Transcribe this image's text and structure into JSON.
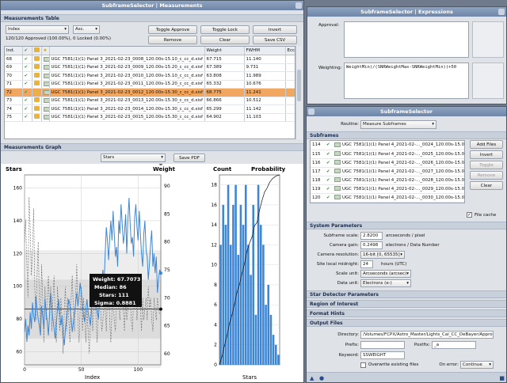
{
  "mt": {
    "title": "SubframeSelector | Measurements",
    "section": "Measurements Table",
    "sort_field": "Index",
    "sort_order": "Asc.",
    "status": "120/120 Approved (100.00%), 0 Locked (0.00%)",
    "buttons": {
      "toggle_approve": "Toggle Approve",
      "toggle_lock": "Toggle Lock",
      "invert": "Invert",
      "remove": "Remove",
      "clear": "Clear",
      "save_csv": "Save CSV"
    },
    "columns": {
      "index": "Ind.",
      "name": "",
      "weight": "Weight",
      "fwhm": "FWHM",
      "ecc": "Ecc"
    },
    "rows": [
      {
        "index": "68",
        "name": "UGC 7581(1)(1) Panel 3_2021-02-23_0008_120.00s-15.10_c_cc_d.xisf",
        "weight": "67.715",
        "fwhm": "11.140",
        "selected": false
      },
      {
        "index": "69",
        "name": "UGC 7581(1)(1) Panel 3_2021-02-23_0009_120.00s-15.20_c_cc_d.xisf",
        "weight": "67.389",
        "fwhm": "9.731",
        "selected": false
      },
      {
        "index": "70",
        "name": "UGC 7581(1)(1) Panel 3_2021-02-23_0010_120.00s-15.10_c_cc_d.xisf",
        "weight": "63.808",
        "fwhm": "11.989",
        "selected": false
      },
      {
        "index": "71",
        "name": "UGC 7581(1)(1) Panel 3_2021-02-23_0011_120.00s-15.20_c_cc_d.xisf",
        "weight": "65.332",
        "fwhm": "10.676",
        "selected": false
      },
      {
        "index": "72",
        "name": "UGC 7581(1)(1) Panel 3_2021-02-23_0012_120.00s-15.30_c_cc_d.xisf",
        "weight": "68.775",
        "fwhm": "11.241",
        "selected": true
      },
      {
        "index": "73",
        "name": "UGC 7581(1)(1) Panel 3_2021-02-23_0013_120.00s-15.30_c_cc_d.xisf",
        "weight": "66.866",
        "fwhm": "10.512",
        "selected": false
      },
      {
        "index": "74",
        "name": "UGC 7581(1)(1) Panel 3_2021-02-23_0014_120.00s-15.30_c_cc_d.xisf",
        "weight": "65.299",
        "fwhm": "11.142",
        "selected": false
      },
      {
        "index": "75",
        "name": "UGC 7581(1)(1) Panel 3_2021-02-23_0015_120.00s-15.30_c_cc_d.xisf",
        "weight": "64.902",
        "fwhm": "11.103",
        "selected": false
      }
    ]
  },
  "graph": {
    "section": "Measurements Graph",
    "property": "Stars",
    "save_pdf": "Save PDF",
    "left_label": "Stars",
    "right_label": "Weight",
    "x_label": "Index",
    "count_label": "Count",
    "prob_label": "Probability",
    "hist_x_label": "Stars",
    "tooltip": {
      "weight": "Weight: 67.7073",
      "median": "Median: 86",
      "stars": "Stars: 111",
      "sigma": "Sigma: 0.8881"
    }
  },
  "chart_data": [
    {
      "type": "line",
      "title": "",
      "xlabel": "Index",
      "ylabel": "Stars",
      "y2label": "Weight",
      "x_ticks": [
        "0",
        "50",
        "100"
      ],
      "y_ticks": [
        "60",
        "80",
        "100",
        "120",
        "140",
        "160"
      ],
      "y2_ticks": [
        "60",
        "65",
        "70",
        "75",
        "80",
        "85",
        "90"
      ],
      "xlim": [
        0,
        120
      ],
      "ylim": [
        52,
        168
      ],
      "y2lim": [
        58,
        92
      ],
      "stars": [
        72,
        80,
        66,
        76,
        70,
        84,
        74,
        90,
        82,
        78,
        94,
        86,
        80,
        76,
        70,
        88,
        82,
        74,
        92,
        84,
        78,
        70,
        82,
        96,
        88,
        80,
        74,
        68,
        78,
        86,
        92,
        84,
        76,
        82,
        70,
        64,
        74,
        80,
        86,
        92,
        88,
        80,
        72,
        78,
        84,
        90,
        96,
        88,
        94,
        102,
        96,
        88,
        82,
        78,
        86,
        92,
        84,
        80,
        76,
        86,
        94,
        100,
        92,
        88,
        84,
        80,
        90,
        96,
        104,
        110,
        100,
        120,
        136,
        128,
        116,
        130,
        140,
        128,
        146,
        132,
        118,
        124,
        112,
        140,
        132,
        150,
        138,
        126,
        132,
        144,
        120,
        140,
        154,
        138,
        126,
        130,
        118,
        142,
        150,
        136,
        128,
        146,
        132,
        120,
        112,
        132,
        140,
        122,
        118,
        104,
        114,
        126,
        134,
        112,
        120,
        108,
        118,
        96,
        104,
        110,
        108
      ],
      "weight": [
        80,
        84,
        76,
        70,
        88,
        82,
        74,
        78,
        86,
        72,
        66,
        74,
        80,
        70,
        64,
        76,
        70,
        62,
        72,
        66,
        70,
        74,
        68,
        72,
        64,
        70,
        74,
        66,
        62,
        72,
        68,
        64,
        70,
        66,
        60,
        68,
        72,
        64,
        70,
        66,
        62,
        70,
        74,
        68,
        64,
        70,
        76,
        66,
        62,
        68,
        72,
        64,
        70,
        66,
        62,
        68,
        64,
        60,
        66,
        70,
        64,
        68,
        72,
        66,
        62,
        70,
        74,
        68,
        64,
        66,
        70,
        68,
        64,
        70,
        72,
        66,
        62,
        68,
        70,
        66,
        64,
        70,
        74,
        68,
        66,
        70,
        72,
        68,
        64,
        70,
        66,
        68,
        72,
        70,
        66,
        64,
        70,
        68,
        72,
        66,
        70,
        74,
        68,
        64,
        70,
        66,
        68,
        70,
        66,
        72,
        68,
        70,
        66,
        64,
        70,
        68,
        66,
        70,
        68,
        67
      ]
    },
    {
      "type": "bar",
      "title": "",
      "xlabel": "Stars",
      "ylabel": "Count",
      "y2label": "Probability",
      "y_ticks": [
        "0",
        "2",
        "4",
        "6",
        "8",
        "10",
        "12",
        "14",
        "16",
        "18"
      ],
      "ylim": [
        0,
        19
      ],
      "values": [
        12,
        16,
        14,
        18,
        12,
        16,
        18,
        11,
        16,
        14,
        18,
        12,
        9,
        16,
        5,
        18,
        14,
        12,
        6,
        8,
        5,
        3,
        2,
        1
      ]
    }
  ],
  "exp": {
    "title": "SubframeSelector | Expressions",
    "approval_label": "Approval:",
    "weighting_label": "Weighting:",
    "weighting_expr": "WeightMin)/(SNRWeightMax-SNRWeightMin))+50"
  },
  "sf": {
    "title": "SubframeSelector",
    "routine_label": "Routine:",
    "routine": "Measure Subframes",
    "subframes_section": "Subframes",
    "subframes": [
      {
        "index": "114",
        "name": "UGC 7581(1)(1) Panel 4_2021-02-..._0024_120.00s-15.0"
      },
      {
        "index": "115",
        "name": "UGC 7581(1)(1) Panel 4_2021-02-..._0025_120.00s-15.0"
      },
      {
        "index": "116",
        "name": "UGC 7581(1)(1) Panel 4_2021-02-..._0026_120.00s-15.0"
      },
      {
        "index": "117",
        "name": "UGC 7581(1)(1) Panel 4_2021-02-..._0027_120.00s-15.0"
      },
      {
        "index": "118",
        "name": "UGC 7581(1)(1) Panel 4_2021-02-..._0028_120.00s-15.0"
      },
      {
        "index": "119",
        "name": "UGC 7581(1)(1) Panel 4_2021-02-..._0029_120.00s-15.0"
      },
      {
        "index": "120",
        "name": "UGC 7581(1)(1) Panel 4_2021-02-..._0030_120.00s-15.0"
      }
    ],
    "buttons": {
      "add_files": "Add Files",
      "invert": "Invert",
      "toggle": "Toggle",
      "remove": "Remove",
      "clear": "Clear"
    },
    "file_cache": "File cache",
    "sys_section": "System Parameters",
    "scale_label": "Subframe scale:",
    "scale": "2.8200",
    "scale_unit": "arcseconds / pixel",
    "gain_label": "Camera gain:",
    "gain": "0.2498",
    "gain_unit": "electrons / Data Number",
    "res_label": "Camera resolution:",
    "res": "16-bit [0, 65535]",
    "midnight_label": "Site local midnight:",
    "midnight": "24",
    "midnight_unit": "hours (UTC)",
    "scale_unit_label": "Scale unit:",
    "scale_unit_val": "Arcseconds (arcsec)",
    "data_unit_label": "Data unit:",
    "data_unit_val": "Electrons (e-)",
    "star_section": "Star Detector Parameters",
    "roi_section": "Region of Interest",
    "format_section": "Format Hints",
    "out_section": "Output Files",
    "dir_label": "Directory:",
    "dir": "/Volumes/FCPX/Astro_Master/Lights_Cal_CC_DeBayer/Approved",
    "prefix_label": "Prefix:",
    "prefix": "",
    "postfix_label": "Postfix:",
    "postfix": "_a",
    "keyword_label": "Keyword:",
    "keyword": "SSWEIGHT",
    "overwrite": "Overwrite existing files",
    "onerror_label": "On error:",
    "onerror": "Continue"
  }
}
